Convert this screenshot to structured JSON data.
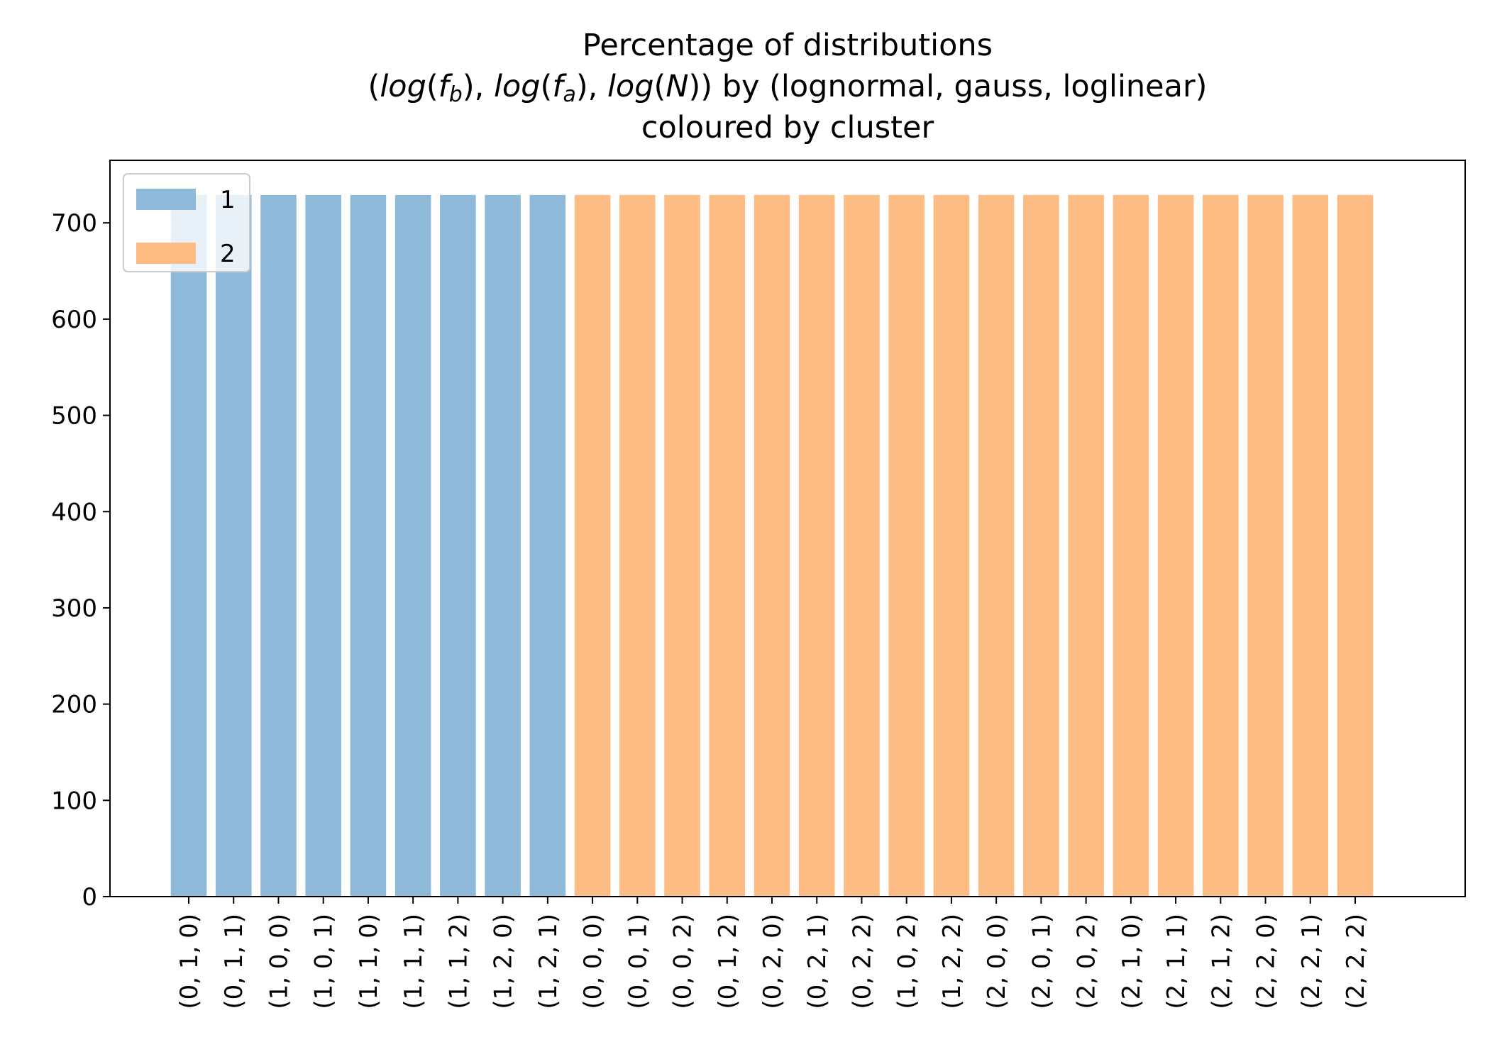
{
  "chart_data": {
    "type": "bar",
    "title_lines": [
      "Percentage of distributions",
      "(log(f_b), log(f_a), log(N)) by (lognormal, gauss, loglinear)",
      "coloured by cluster"
    ],
    "xlabel": "",
    "ylabel": "",
    "ylim": [
      0,
      765
    ],
    "yticks": [
      0,
      100,
      200,
      300,
      400,
      500,
      600,
      700
    ],
    "grid": false,
    "legend": {
      "placement": "upper-left",
      "entries": [
        "1",
        "2"
      ]
    },
    "series": [
      {
        "name": "1",
        "color": "#8fb9d9",
        "categories": [
          "(0, 1, 0)",
          "(0, 1, 1)",
          "(1, 0, 0)",
          "(1, 0, 1)",
          "(1, 1, 0)",
          "(1, 1, 1)",
          "(1, 1, 2)",
          "(1, 2, 0)",
          "(1, 2, 1)"
        ],
        "values": [
          729,
          729,
          729,
          729,
          729,
          729,
          729,
          729,
          729
        ]
      },
      {
        "name": "2",
        "color": "#fdbc84",
        "categories": [
          "(0, 0, 0)",
          "(0, 0, 1)",
          "(0, 0, 2)",
          "(0, 1, 2)",
          "(0, 2, 0)",
          "(0, 2, 1)",
          "(0, 2, 2)",
          "(1, 0, 2)",
          "(1, 2, 2)",
          "(2, 0, 0)",
          "(2, 0, 1)",
          "(2, 0, 2)",
          "(2, 1, 0)",
          "(2, 1, 1)",
          "(2, 1, 2)",
          "(2, 2, 0)",
          "(2, 2, 1)",
          "(2, 2, 2)"
        ],
        "values": [
          729,
          729,
          729,
          729,
          729,
          729,
          729,
          729,
          729,
          729,
          729,
          729,
          729,
          729,
          729,
          729,
          729,
          729
        ]
      }
    ]
  }
}
